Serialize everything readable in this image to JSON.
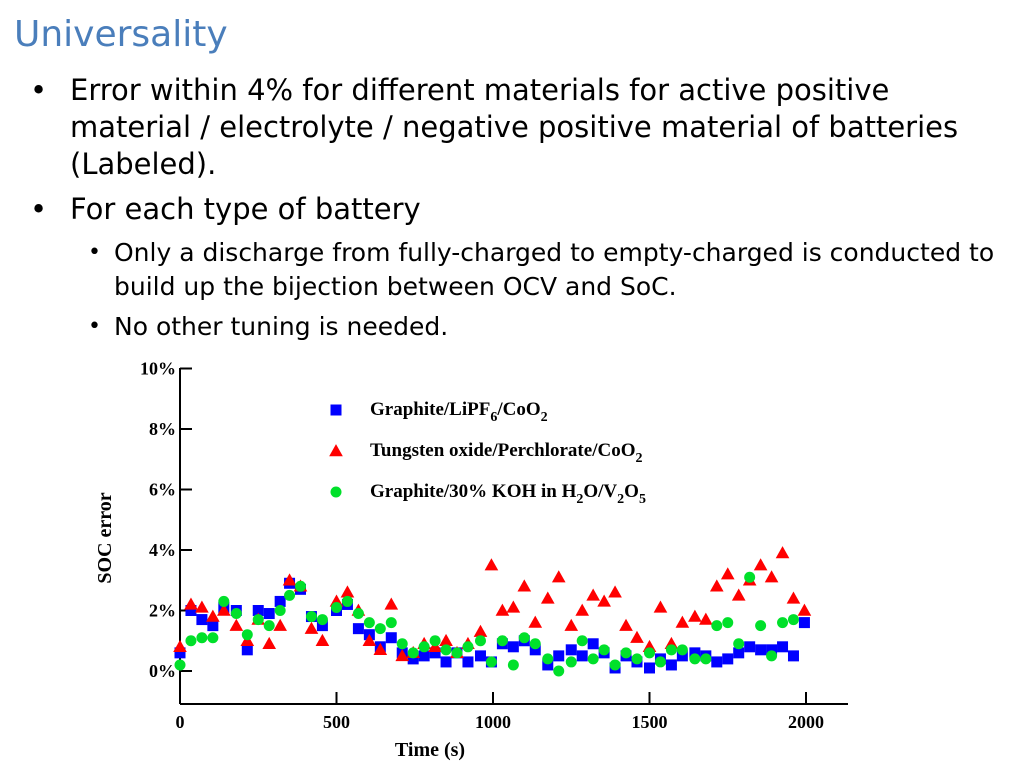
{
  "slide": {
    "title": "Universality",
    "bullets": [
      {
        "text": "Error within 4% for different materials for active positive material / electrolyte / negative positive material of batteries (Labeled)."
      },
      {
        "text": "For each type of battery"
      }
    ],
    "sub_bullets": [
      {
        "text": "Only a discharge from fully-charged to empty-charged is conducted to build up the bijection between OCV and SoC."
      },
      {
        "text": "No other tuning is needed."
      }
    ]
  },
  "chart_data": {
    "type": "scatter",
    "xlabel": "Time (s)",
    "ylabel": "SOC error",
    "xlim": [
      0,
      2100
    ],
    "ylim": [
      -1,
      10
    ],
    "x_ticks": [
      "0",
      "500",
      "1000",
      "1500",
      "2000"
    ],
    "y_ticks": [
      "0%",
      "2%",
      "4%",
      "6%",
      "8%",
      "10%"
    ],
    "legend_position": "top-center",
    "series": [
      {
        "name_parts": [
          "Graphite/LiPF",
          "6",
          "/CoO",
          "2"
        ],
        "marker": "square",
        "color": "#0000ff",
        "points": [
          [
            0,
            0.6
          ],
          [
            35,
            2.0
          ],
          [
            70,
            1.7
          ],
          [
            105,
            1.5
          ],
          [
            140,
            2.1
          ],
          [
            180,
            2.0
          ],
          [
            215,
            0.7
          ],
          [
            250,
            2.0
          ],
          [
            285,
            1.9
          ],
          [
            320,
            2.3
          ],
          [
            350,
            2.9
          ],
          [
            385,
            2.7
          ],
          [
            420,
            1.8
          ],
          [
            455,
            1.5
          ],
          [
            500,
            2.0
          ],
          [
            535,
            2.2
          ],
          [
            570,
            1.4
          ],
          [
            605,
            1.2
          ],
          [
            640,
            0.8
          ],
          [
            675,
            1.1
          ],
          [
            710,
            0.6
          ],
          [
            745,
            0.4
          ],
          [
            780,
            0.5
          ],
          [
            815,
            0.6
          ],
          [
            850,
            0.3
          ],
          [
            885,
            0.6
          ],
          [
            920,
            0.3
          ],
          [
            960,
            0.5
          ],
          [
            995,
            0.3
          ],
          [
            1030,
            0.9
          ],
          [
            1065,
            0.8
          ],
          [
            1100,
            1.0
          ],
          [
            1135,
            0.7
          ],
          [
            1175,
            0.2
          ],
          [
            1210,
            0.5
          ],
          [
            1250,
            0.7
          ],
          [
            1285,
            0.5
          ],
          [
            1320,
            0.9
          ],
          [
            1355,
            0.6
          ],
          [
            1390,
            0.1
          ],
          [
            1425,
            0.5
          ],
          [
            1460,
            0.3
          ],
          [
            1500,
            0.1
          ],
          [
            1535,
            0.4
          ],
          [
            1570,
            0.2
          ],
          [
            1605,
            0.5
          ],
          [
            1645,
            0.6
          ],
          [
            1680,
            0.5
          ],
          [
            1715,
            0.3
          ],
          [
            1750,
            0.4
          ],
          [
            1785,
            0.6
          ],
          [
            1820,
            0.8
          ],
          [
            1855,
            0.7
          ],
          [
            1890,
            0.7
          ],
          [
            1925,
            0.8
          ],
          [
            1960,
            0.5
          ],
          [
            1995,
            1.6
          ]
        ]
      },
      {
        "name_parts": [
          "Tungsten oxide/Perchlorate/CoO",
          "2"
        ],
        "marker": "triangle",
        "color": "#ff0000",
        "points": [
          [
            0,
            0.8
          ],
          [
            35,
            2.2
          ],
          [
            70,
            2.1
          ],
          [
            105,
            1.8
          ],
          [
            140,
            2.0
          ],
          [
            180,
            1.5
          ],
          [
            215,
            1.0
          ],
          [
            250,
            1.7
          ],
          [
            285,
            0.9
          ],
          [
            320,
            1.5
          ],
          [
            350,
            3.0
          ],
          [
            385,
            2.8
          ],
          [
            420,
            1.4
          ],
          [
            455,
            1.0
          ],
          [
            500,
            2.3
          ],
          [
            535,
            2.6
          ],
          [
            570,
            2.0
          ],
          [
            605,
            1.0
          ],
          [
            640,
            0.7
          ],
          [
            675,
            2.2
          ],
          [
            710,
            0.5
          ],
          [
            745,
            0.6
          ],
          [
            780,
            0.9
          ],
          [
            815,
            0.8
          ],
          [
            850,
            1.0
          ],
          [
            885,
            0.6
          ],
          [
            920,
            0.9
          ],
          [
            960,
            1.3
          ],
          [
            995,
            3.5
          ],
          [
            1030,
            2.0
          ],
          [
            1065,
            2.1
          ],
          [
            1100,
            2.8
          ],
          [
            1135,
            1.6
          ],
          [
            1175,
            2.4
          ],
          [
            1210,
            3.1
          ],
          [
            1250,
            1.5
          ],
          [
            1285,
            2.0
          ],
          [
            1320,
            2.5
          ],
          [
            1355,
            2.3
          ],
          [
            1390,
            2.6
          ],
          [
            1425,
            1.5
          ],
          [
            1460,
            1.1
          ],
          [
            1500,
            0.8
          ],
          [
            1535,
            2.1
          ],
          [
            1570,
            0.9
          ],
          [
            1605,
            1.6
          ],
          [
            1645,
            1.8
          ],
          [
            1680,
            1.7
          ],
          [
            1715,
            2.8
          ],
          [
            1750,
            3.2
          ],
          [
            1785,
            2.5
          ],
          [
            1820,
            3.0
          ],
          [
            1855,
            3.5
          ],
          [
            1890,
            3.1
          ],
          [
            1925,
            3.9
          ],
          [
            1960,
            2.4
          ],
          [
            1995,
            2.0
          ]
        ]
      },
      {
        "name_parts": [
          "Graphite/30% KOH in H",
          "2",
          "O/V",
          "2",
          "O",
          "5"
        ],
        "marker": "circle",
        "color": "#00e02a",
        "points": [
          [
            0,
            0.2
          ],
          [
            35,
            1.0
          ],
          [
            70,
            1.1
          ],
          [
            105,
            1.1
          ],
          [
            140,
            2.3
          ],
          [
            180,
            1.9
          ],
          [
            215,
            1.2
          ],
          [
            250,
            1.7
          ],
          [
            285,
            1.5
          ],
          [
            320,
            2.0
          ],
          [
            350,
            2.5
          ],
          [
            385,
            2.8
          ],
          [
            420,
            1.8
          ],
          [
            455,
            1.7
          ],
          [
            500,
            2.1
          ],
          [
            535,
            2.3
          ],
          [
            570,
            1.9
          ],
          [
            605,
            1.6
          ],
          [
            640,
            1.4
          ],
          [
            675,
            1.6
          ],
          [
            710,
            0.9
          ],
          [
            745,
            0.6
          ],
          [
            780,
            0.8
          ],
          [
            815,
            1.0
          ],
          [
            850,
            0.7
          ],
          [
            885,
            0.6
          ],
          [
            920,
            0.8
          ],
          [
            960,
            1.0
          ],
          [
            995,
            0.3
          ],
          [
            1030,
            1.0
          ],
          [
            1065,
            0.2
          ],
          [
            1100,
            1.1
          ],
          [
            1135,
            0.9
          ],
          [
            1175,
            0.4
          ],
          [
            1210,
            0.0
          ],
          [
            1250,
            0.3
          ],
          [
            1285,
            1.0
          ],
          [
            1320,
            0.4
          ],
          [
            1355,
            0.7
          ],
          [
            1390,
            0.2
          ],
          [
            1425,
            0.6
          ],
          [
            1460,
            0.4
          ],
          [
            1500,
            0.6
          ],
          [
            1535,
            0.3
          ],
          [
            1570,
            0.7
          ],
          [
            1605,
            0.7
          ],
          [
            1645,
            0.4
          ],
          [
            1680,
            0.4
          ],
          [
            1715,
            1.5
          ],
          [
            1750,
            1.6
          ],
          [
            1785,
            0.9
          ],
          [
            1820,
            3.1
          ],
          [
            1855,
            1.5
          ],
          [
            1890,
            0.5
          ],
          [
            1925,
            1.6
          ],
          [
            1960,
            1.7
          ]
        ]
      }
    ]
  }
}
